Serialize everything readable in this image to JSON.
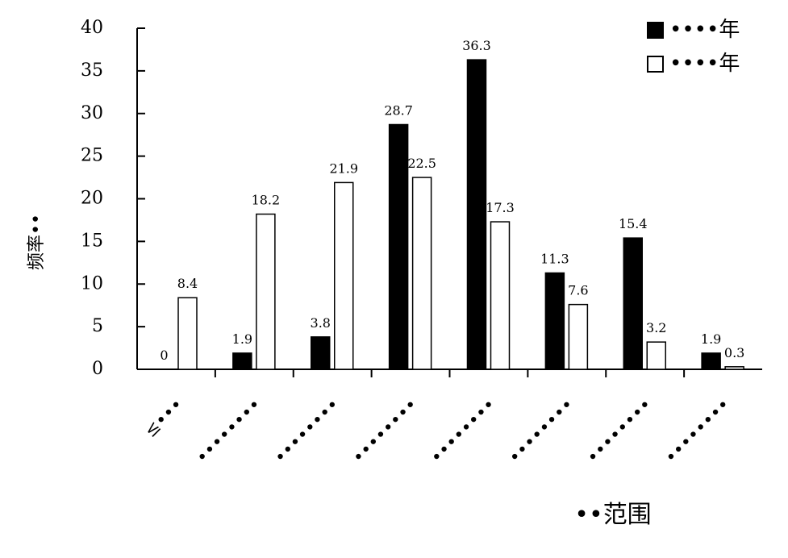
{
  "chart_data": {
    "type": "bar",
    "y_label": "频率••",
    "x_label": "••范围",
    "categories": [
      "≤•••",
      "••••••••",
      "••••••••",
      "••••••••",
      "••••••••",
      "••••••••",
      "••••••••",
      "••••••••"
    ],
    "series": [
      {
        "name": "••••年",
        "color": "#000000",
        "values": [
          0,
          1.9,
          3.8,
          28.7,
          36.3,
          11.3,
          15.4,
          1.9
        ]
      },
      {
        "name": "••••年",
        "color": "#ffffff",
        "values": [
          8.4,
          18.2,
          21.9,
          22.5,
          17.3,
          7.6,
          3.2,
          0.3
        ]
      }
    ],
    "ylim": [
      0,
      40
    ],
    "yticks": [
      0,
      5,
      10,
      15,
      20,
      25,
      30,
      35,
      40
    ],
    "legend": "upper right"
  }
}
